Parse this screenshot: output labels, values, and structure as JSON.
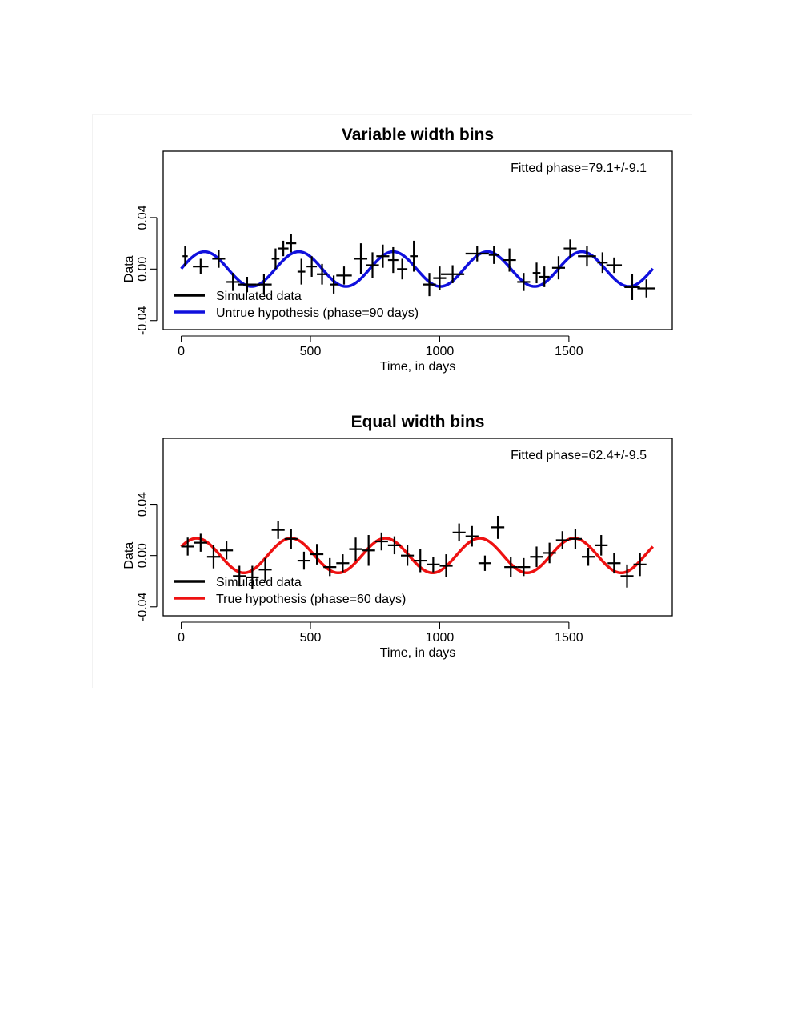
{
  "chart_data": [
    {
      "type": "line",
      "title": "Variable width bins",
      "xlabel": "Time, in days",
      "ylabel": "Data",
      "xlim": [
        -70,
        1900
      ],
      "ylim": [
        -0.047,
        0.0915
      ],
      "xticks": [
        0,
        500,
        1000,
        1500
      ],
      "xtick_labels": [
        "0",
        "500",
        "1000",
        "1500"
      ],
      "yticks": [
        -0.04,
        0.0,
        0.04
      ],
      "ytick_labels": [
        "-0.04",
        "0.00",
        "0.04"
      ],
      "annotation": "Fitted phase=79.1+/-9.1",
      "legend": [
        {
          "label": "Simulated data",
          "color": "#000000"
        },
        {
          "label": "Untrue hypothesis (phase=90 days)",
          "color": "#1010dd"
        }
      ],
      "curve": {
        "name": "Untrue hypothesis (phase=90 days)",
        "color": "#1010dd",
        "amplitude": 0.0135,
        "period": 365,
        "phase": 90,
        "x_start": 0,
        "x_end": 1825
      },
      "series": [
        {
          "name": "Simulated data",
          "points": [
            {
              "x": 15,
              "y": 0.01,
              "xerr": 10,
              "yerr": 0.008
            },
            {
              "x": 75,
              "y": 0.002,
              "xerr": 30,
              "yerr": 0.006
            },
            {
              "x": 145,
              "y": 0.008,
              "xerr": 25,
              "yerr": 0.007
            },
            {
              "x": 200,
              "y": -0.01,
              "xerr": 25,
              "yerr": 0.007
            },
            {
              "x": 255,
              "y": -0.012,
              "xerr": 35,
              "yerr": 0.006
            },
            {
              "x": 320,
              "y": -0.012,
              "xerr": 30,
              "yerr": 0.008
            },
            {
              "x": 365,
              "y": 0.008,
              "xerr": 15,
              "yerr": 0.008
            },
            {
              "x": 395,
              "y": 0.016,
              "xerr": 20,
              "yerr": 0.006
            },
            {
              "x": 425,
              "y": 0.02,
              "xerr": 20,
              "yerr": 0.007
            },
            {
              "x": 465,
              "y": -0.002,
              "xerr": 15,
              "yerr": 0.01
            },
            {
              "x": 505,
              "y": 0.002,
              "xerr": 20,
              "yerr": 0.008
            },
            {
              "x": 545,
              "y": -0.004,
              "xerr": 20,
              "yerr": 0.008
            },
            {
              "x": 590,
              "y": -0.012,
              "xerr": 15,
              "yerr": 0.007
            },
            {
              "x": 630,
              "y": -0.005,
              "xerr": 30,
              "yerr": 0.007
            },
            {
              "x": 695,
              "y": 0.008,
              "xerr": 25,
              "yerr": 0.012
            },
            {
              "x": 740,
              "y": 0.003,
              "xerr": 25,
              "yerr": 0.01
            },
            {
              "x": 780,
              "y": 0.01,
              "xerr": 25,
              "yerr": 0.009
            },
            {
              "x": 820,
              "y": 0.007,
              "xerr": 20,
              "yerr": 0.01
            },
            {
              "x": 855,
              "y": 0.0,
              "xerr": 20,
              "yerr": 0.008
            },
            {
              "x": 900,
              "y": 0.01,
              "xerr": 15,
              "yerr": 0.012
            },
            {
              "x": 960,
              "y": -0.012,
              "xerr": 25,
              "yerr": 0.009
            },
            {
              "x": 1000,
              "y": -0.007,
              "xerr": 25,
              "yerr": 0.009
            },
            {
              "x": 1050,
              "y": -0.004,
              "xerr": 45,
              "yerr": 0.007
            },
            {
              "x": 1145,
              "y": 0.012,
              "xerr": 45,
              "yerr": 0.006
            },
            {
              "x": 1210,
              "y": 0.011,
              "xerr": 20,
              "yerr": 0.007
            },
            {
              "x": 1270,
              "y": 0.007,
              "xerr": 25,
              "yerr": 0.009
            },
            {
              "x": 1325,
              "y": -0.01,
              "xerr": 25,
              "yerr": 0.007
            },
            {
              "x": 1375,
              "y": -0.003,
              "xerr": 15,
              "yerr": 0.008
            },
            {
              "x": 1405,
              "y": -0.006,
              "xerr": 20,
              "yerr": 0.008
            },
            {
              "x": 1460,
              "y": 0.001,
              "xerr": 25,
              "yerr": 0.009
            },
            {
              "x": 1505,
              "y": 0.016,
              "xerr": 25,
              "yerr": 0.007
            },
            {
              "x": 1570,
              "y": 0.01,
              "xerr": 35,
              "yerr": 0.008
            },
            {
              "x": 1630,
              "y": 0.005,
              "xerr": 20,
              "yerr": 0.008
            },
            {
              "x": 1675,
              "y": 0.003,
              "xerr": 30,
              "yerr": 0.006
            },
            {
              "x": 1745,
              "y": -0.014,
              "xerr": 30,
              "yerr": 0.01
            },
            {
              "x": 1800,
              "y": -0.015,
              "xerr": 35,
              "yerr": 0.007
            }
          ]
        }
      ]
    },
    {
      "type": "line",
      "title": "Equal width bins",
      "xlabel": "Time, in days",
      "ylabel": "Data",
      "xlim": [
        -70,
        1900
      ],
      "ylim": [
        -0.047,
        0.0915
      ],
      "xticks": [
        0,
        500,
        1000,
        1500
      ],
      "xtick_labels": [
        "0",
        "500",
        "1000",
        "1500"
      ],
      "yticks": [
        -0.04,
        0.0,
        0.04
      ],
      "ytick_labels": [
        "-0.04",
        "0.00",
        "0.04"
      ],
      "annotation": "Fitted phase=62.4+/-9.5",
      "legend": [
        {
          "label": "Simulated data",
          "color": "#000000"
        },
        {
          "label": "True hypothesis (phase=60 days)",
          "color": "#ee1111"
        }
      ],
      "curve": {
        "name": "True hypothesis (phase=60 days)",
        "color": "#ee1111",
        "amplitude": 0.0135,
        "period": 365,
        "phase": 60,
        "x_start": 0,
        "x_end": 1825
      },
      "series": [
        {
          "name": "Simulated data",
          "points": [
            {
              "x": 25,
              "y": 0.007,
              "xerr": 25,
              "yerr": 0.007
            },
            {
              "x": 75,
              "y": 0.01,
              "xerr": 25,
              "yerr": 0.007
            },
            {
              "x": 125,
              "y": -0.001,
              "xerr": 25,
              "yerr": 0.009
            },
            {
              "x": 175,
              "y": 0.004,
              "xerr": 25,
              "yerr": 0.007
            },
            {
              "x": 225,
              "y": -0.016,
              "xerr": 25,
              "yerr": 0.008
            },
            {
              "x": 275,
              "y": -0.017,
              "xerr": 25,
              "yerr": 0.009
            },
            {
              "x": 325,
              "y": -0.011,
              "xerr": 25,
              "yerr": 0.009
            },
            {
              "x": 375,
              "y": 0.02,
              "xerr": 25,
              "yerr": 0.007
            },
            {
              "x": 425,
              "y": 0.013,
              "xerr": 25,
              "yerr": 0.008
            },
            {
              "x": 475,
              "y": -0.004,
              "xerr": 25,
              "yerr": 0.007
            },
            {
              "x": 525,
              "y": 0.001,
              "xerr": 25,
              "yerr": 0.008
            },
            {
              "x": 575,
              "y": -0.009,
              "xerr": 25,
              "yerr": 0.007
            },
            {
              "x": 625,
              "y": -0.006,
              "xerr": 25,
              "yerr": 0.007
            },
            {
              "x": 675,
              "y": 0.005,
              "xerr": 25,
              "yerr": 0.009
            },
            {
              "x": 725,
              "y": 0.004,
              "xerr": 25,
              "yerr": 0.012
            },
            {
              "x": 775,
              "y": 0.011,
              "xerr": 25,
              "yerr": 0.007
            },
            {
              "x": 825,
              "y": 0.008,
              "xerr": 25,
              "yerr": 0.007
            },
            {
              "x": 875,
              "y": 0.0,
              "xerr": 25,
              "yerr": 0.008
            },
            {
              "x": 925,
              "y": -0.004,
              "xerr": 25,
              "yerr": 0.009
            },
            {
              "x": 975,
              "y": -0.007,
              "xerr": 25,
              "yerr": 0.006
            },
            {
              "x": 1025,
              "y": -0.008,
              "xerr": 25,
              "yerr": 0.009
            },
            {
              "x": 1075,
              "y": 0.018,
              "xerr": 25,
              "yerr": 0.007
            },
            {
              "x": 1125,
              "y": 0.015,
              "xerr": 25,
              "yerr": 0.008
            },
            {
              "x": 1175,
              "y": -0.006,
              "xerr": 25,
              "yerr": 0.006
            },
            {
              "x": 1225,
              "y": 0.022,
              "xerr": 25,
              "yerr": 0.009
            },
            {
              "x": 1275,
              "y": -0.009,
              "xerr": 25,
              "yerr": 0.008
            },
            {
              "x": 1325,
              "y": -0.009,
              "xerr": 25,
              "yerr": 0.007
            },
            {
              "x": 1375,
              "y": -0.001,
              "xerr": 25,
              "yerr": 0.008
            },
            {
              "x": 1425,
              "y": 0.002,
              "xerr": 25,
              "yerr": 0.008
            },
            {
              "x": 1475,
              "y": 0.012,
              "xerr": 25,
              "yerr": 0.007
            },
            {
              "x": 1525,
              "y": 0.013,
              "xerr": 25,
              "yerr": 0.008
            },
            {
              "x": 1575,
              "y": -0.001,
              "xerr": 25,
              "yerr": 0.007
            },
            {
              "x": 1625,
              "y": 0.008,
              "xerr": 25,
              "yerr": 0.008
            },
            {
              "x": 1675,
              "y": -0.006,
              "xerr": 25,
              "yerr": 0.008
            },
            {
              "x": 1725,
              "y": -0.016,
              "xerr": 25,
              "yerr": 0.009
            },
            {
              "x": 1775,
              "y": -0.007,
              "xerr": 25,
              "yerr": 0.009
            }
          ]
        }
      ]
    }
  ]
}
